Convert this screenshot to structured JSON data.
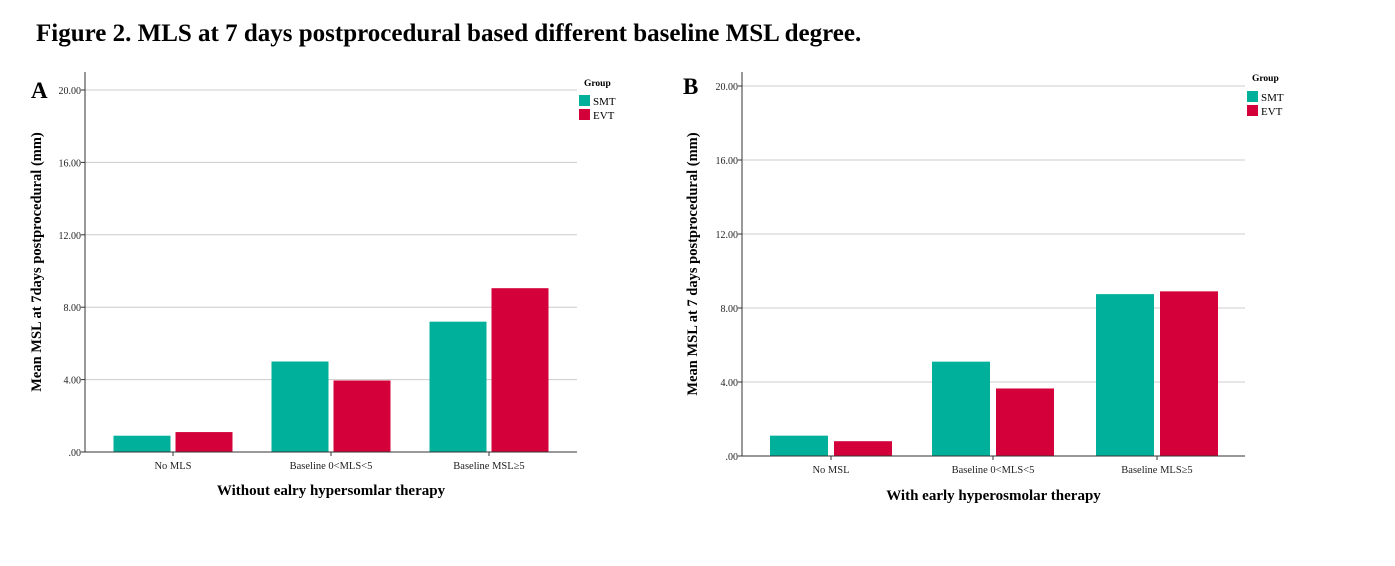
{
  "figure_title": "Figure 2. MLS at 7 days postprocedural based different baseline MSL degree.",
  "colors": {
    "SMT": "#00b09b",
    "EVT": "#d4003a",
    "grid": "#cccccc",
    "axis": "#333333"
  },
  "chart_data": [
    {
      "type": "bar",
      "panel_label": "A",
      "title": "",
      "categories": [
        "No MLS",
        "Baseline 0<MLS<5",
        "Baseline MSL≥5"
      ],
      "series": [
        {
          "name": "SMT",
          "values": [
            0.9,
            5.0,
            7.2
          ]
        },
        {
          "name": "EVT",
          "values": [
            1.1,
            3.95,
            9.05
          ]
        }
      ],
      "xlabel": "Without ealry hypersomlar therapy",
      "ylabel": "Mean MSL at 7days postprocedural (mm)",
      "ylim": [
        0,
        20
      ],
      "yticks": [
        0,
        4,
        8,
        12,
        16,
        20
      ],
      "ytick_labels": [
        ".00",
        "4.00",
        "8.00",
        "12.00",
        "16.00",
        "20.00"
      ],
      "grid": true,
      "legend_title": "Group",
      "legend_position": "top-right"
    },
    {
      "type": "bar",
      "panel_label": "B",
      "title": "",
      "categories": [
        "No MSL",
        "Baseline 0<MLS<5",
        "Baseline MLS≥5"
      ],
      "series": [
        {
          "name": "SMT",
          "values": [
            1.1,
            5.1,
            8.75
          ]
        },
        {
          "name": "EVT",
          "values": [
            0.8,
            3.65,
            8.9
          ]
        }
      ],
      "xlabel": "With early hyperosmolar therapy",
      "ylabel": "Mean MSL at 7 days postprocedural (mm)",
      "ylim": [
        0,
        20
      ],
      "yticks": [
        0,
        4,
        8,
        12,
        16,
        20
      ],
      "ytick_labels": [
        ".00",
        "4.00",
        "8.00",
        "12.00",
        "16.00",
        "20.00"
      ],
      "grid": true,
      "legend_title": "Group",
      "legend_position": "top-right"
    }
  ]
}
